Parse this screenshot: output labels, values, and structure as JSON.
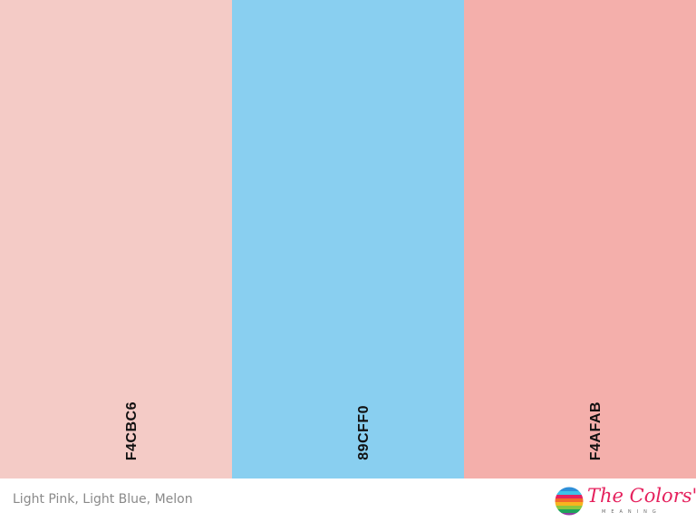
{
  "swatches": [
    {
      "code": "F4CBC6",
      "color": "#F4CBC6"
    },
    {
      "code": "89CFF0",
      "color": "#89CFF0"
    },
    {
      "code": "F4AFAB",
      "color": "#F4AFAB"
    }
  ],
  "caption": "Light Pink, Light Blue, Melon",
  "logo": {
    "title": "The Colors'",
    "subtitle": "MEANING",
    "icon": "colorful-striped-circle-icon",
    "brand_color": "#E5215D"
  }
}
